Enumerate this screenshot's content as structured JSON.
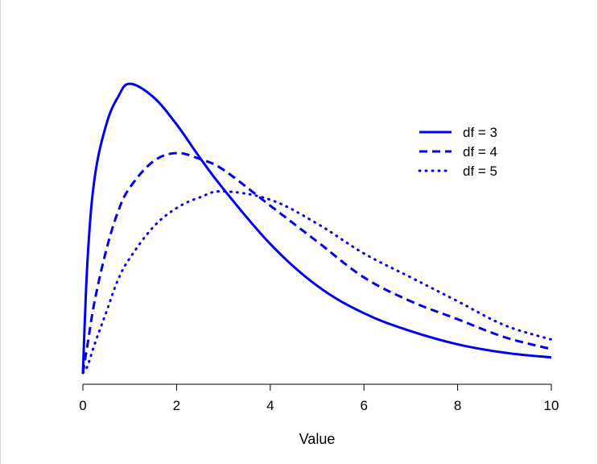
{
  "chart_data": {
    "type": "line",
    "title": "",
    "xlabel": "Value",
    "ylabel": "",
    "xlim": [
      0,
      10
    ],
    "x_ticks": [
      0,
      2,
      4,
      6,
      8,
      10
    ],
    "y_axis_shown": false,
    "grid": false,
    "legend_position": "top-right",
    "color": "#0000ee",
    "series": [
      {
        "name": "df = 3",
        "style": "solid",
        "x": [
          0,
          0.1,
          0.25,
          0.5,
          0.75,
          1,
          1.5,
          2,
          2.5,
          3,
          4,
          5,
          6,
          7,
          8,
          9,
          10
        ],
        "y": [
          0,
          0.095,
          0.163,
          0.208,
          0.231,
          0.242,
          0.231,
          0.208,
          0.18,
          0.154,
          0.108,
          0.073,
          0.05,
          0.035,
          0.024,
          0.017,
          0.013
        ]
      },
      {
        "name": "df = 4",
        "style": "dashed",
        "x": [
          0,
          0.1,
          0.25,
          0.5,
          0.75,
          1,
          1.5,
          2,
          2.5,
          3,
          4,
          5,
          6,
          7,
          8,
          9,
          10
        ],
        "y": [
          0,
          0.024,
          0.06,
          0.103,
          0.135,
          0.155,
          0.177,
          0.184,
          0.179,
          0.17,
          0.14,
          0.11,
          0.08,
          0.06,
          0.045,
          0.03,
          0.02
        ]
      },
      {
        "name": "df = 5",
        "style": "dotted",
        "x": [
          0,
          0.1,
          0.25,
          0.5,
          0.75,
          1,
          1.5,
          2,
          2.5,
          3,
          4,
          5,
          6,
          7,
          8,
          9,
          10
        ],
        "y": [
          0,
          0.006,
          0.024,
          0.051,
          0.078,
          0.096,
          0.122,
          0.138,
          0.147,
          0.152,
          0.145,
          0.125,
          0.1,
          0.08,
          0.06,
          0.04,
          0.028
        ]
      }
    ]
  }
}
